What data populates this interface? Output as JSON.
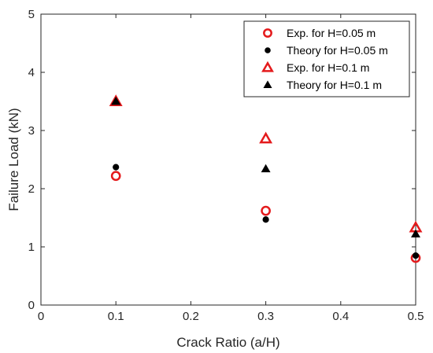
{
  "chart_data": {
    "type": "scatter",
    "title": "",
    "xlabel": "Crack Ratio (a/H)",
    "ylabel": "Failure Load (kN)",
    "xlim": [
      0,
      0.5
    ],
    "ylim": [
      0,
      5
    ],
    "xticks": [
      "0",
      "0.1",
      "0.2",
      "0.3",
      "0.4",
      "0.5"
    ],
    "yticks": [
      "0",
      "1",
      "2",
      "3",
      "4",
      "5"
    ],
    "grid": false,
    "legend_position": "top-right",
    "series": [
      {
        "name": "Exp. for H=0.05 m",
        "marker": "circle-open",
        "color": "#e41a1c",
        "x": [
          0.1,
          0.3,
          0.5
        ],
        "y": [
          2.22,
          1.62,
          0.81
        ]
      },
      {
        "name": "Theory for H=0.05 m",
        "marker": "circle-filled",
        "color": "#000000",
        "x": [
          0.1,
          0.3,
          0.5
        ],
        "y": [
          2.37,
          1.47,
          0.85
        ]
      },
      {
        "name": "Exp. for H=0.1 m",
        "marker": "triangle-open",
        "color": "#e41a1c",
        "x": [
          0.1,
          0.3,
          0.5
        ],
        "y": [
          3.5,
          2.86,
          1.33
        ]
      },
      {
        "name": "Theory for H=0.1 m",
        "marker": "triangle-filled",
        "color": "#000000",
        "x": [
          0.1,
          0.3,
          0.5
        ],
        "y": [
          3.5,
          2.34,
          1.22
        ]
      }
    ]
  }
}
